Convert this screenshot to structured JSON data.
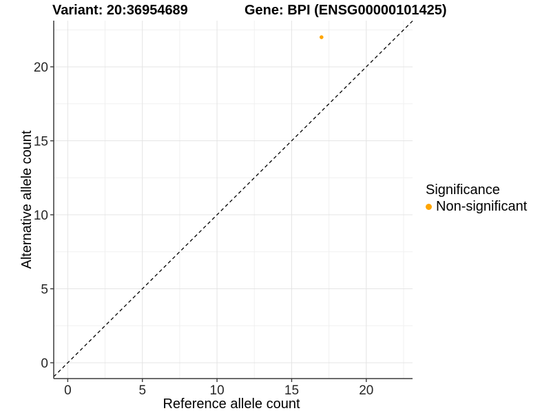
{
  "header": {
    "variant_title": "Variant: 20:36954689",
    "gene_title": "Gene: BPI (ENSG00000101425)"
  },
  "chart_data": {
    "type": "scatter",
    "title_left": "Variant: 20:36954689",
    "title_right": "Gene: BPI (ENSG00000101425)",
    "xlabel": "Reference allele count",
    "ylabel": "Alternative allele count",
    "xlim": [
      -0.94,
      23.1
    ],
    "ylim": [
      -1.07,
      23.12
    ],
    "x_ticks": [
      0,
      5,
      10,
      15,
      20
    ],
    "y_ticks": [
      0,
      5,
      10,
      15,
      20
    ],
    "x_minor_ticks": [
      2.5,
      7.5,
      12.5,
      17.5,
      22.5
    ],
    "y_minor_ticks": [
      2.5,
      7.5,
      12.5,
      17.5,
      22.5
    ],
    "grid": true,
    "identity_line": {
      "equation": "y = x",
      "style": "dashed",
      "color": "#000000"
    },
    "series": [
      {
        "name": "Non-significant",
        "color": "#FFA500",
        "points": [
          {
            "x": 17,
            "y": 22
          }
        ]
      }
    ],
    "legend": {
      "title": "Significance",
      "position": "right",
      "items": [
        {
          "label": "Non-significant",
          "color": "#FFA500"
        }
      ]
    },
    "colors": {
      "grid_major": "#E4E4E4",
      "grid_minor": "#F0F0F0",
      "axis_line": "#3A3A3A",
      "tick_label": "#262626",
      "background": "#FFFFFF"
    }
  }
}
